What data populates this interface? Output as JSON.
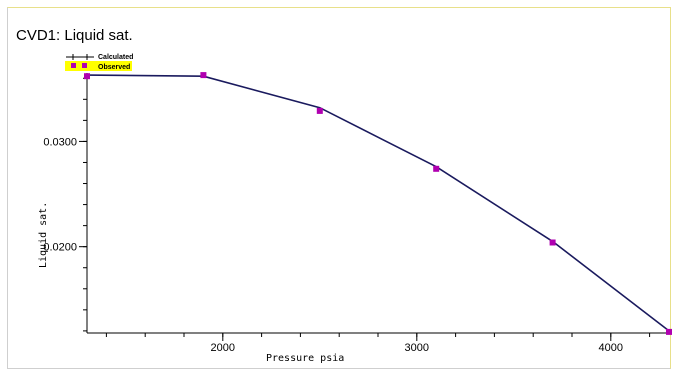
{
  "chart_data": {
    "type": "line",
    "title": "CVD1: Liquid sat.",
    "xlabel": "Pressure   psia",
    "ylabel": "Liquid sat.",
    "xlim": [
      1300,
      4300
    ],
    "ylim": [
      0.0118,
      0.0365
    ],
    "x_ticks": [
      2000,
      3000,
      4000
    ],
    "y_ticks": [
      0.02,
      0.03
    ],
    "x_tick_labels": [
      "2000",
      "3000",
      "4000"
    ],
    "y_tick_labels": [
      "0.0200",
      "0.0300"
    ],
    "legend_placement": "top-left",
    "series": [
      {
        "name": "Calculated",
        "style": "line",
        "color": "#1a1a5e",
        "x": [
          1300,
          1900,
          2500,
          3100,
          3700,
          4300
        ],
        "y": [
          0.0363,
          0.0362,
          0.0332,
          0.0276,
          0.0205,
          0.012
        ]
      },
      {
        "name": "Observed",
        "style": "markers",
        "color": "#b000b0",
        "x": [
          1300,
          1900,
          2500,
          3100,
          3700,
          4300
        ],
        "y": [
          0.0362,
          0.0363,
          0.0329,
          0.0274,
          0.0204,
          0.0119
        ]
      }
    ],
    "legend_highlight_color": "#ffff00",
    "frame_accent_color": "#e8e08a"
  }
}
